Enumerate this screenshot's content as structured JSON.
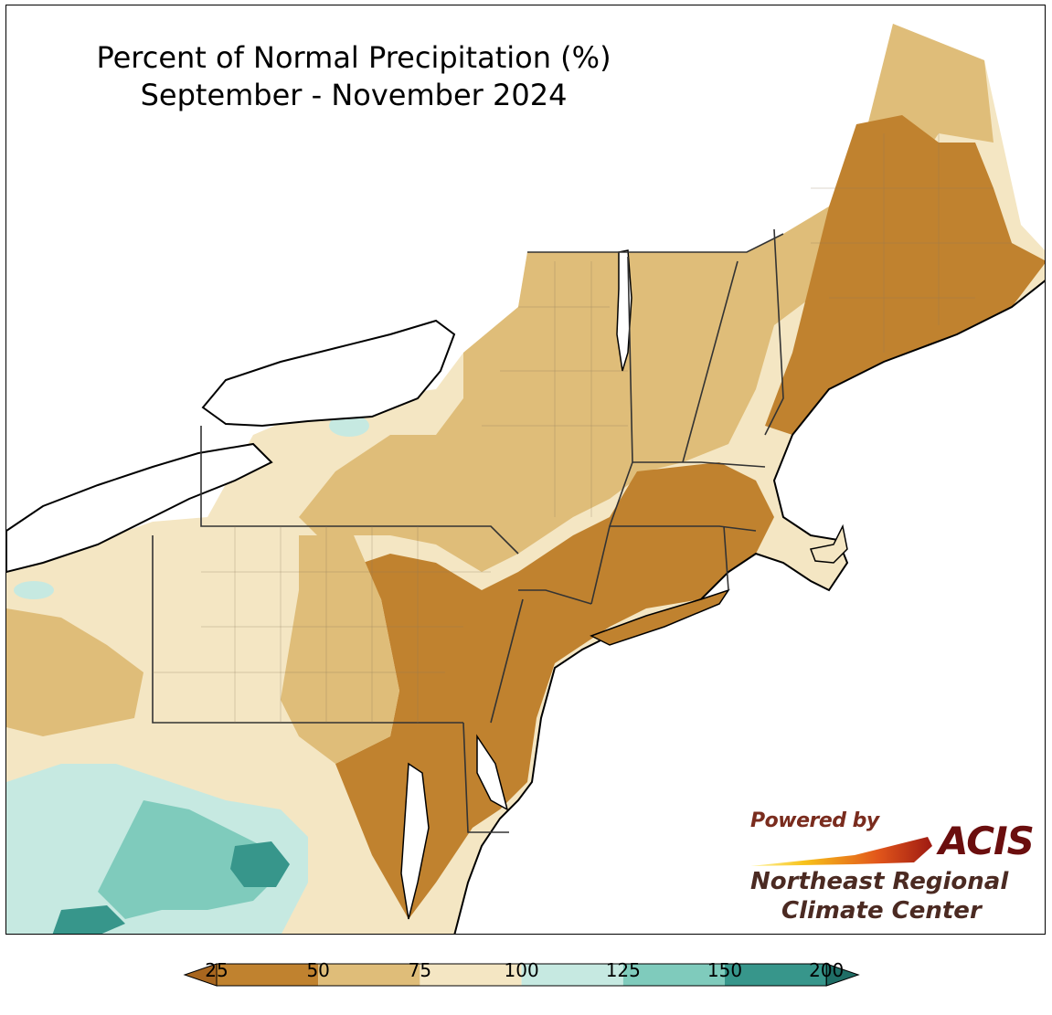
{
  "title": {
    "line1": "Percent of Normal Precipitation (%)",
    "line2": "September - November 2024"
  },
  "logo": {
    "powered_by": "Powered by",
    "brand": "ACIS",
    "org_line1": "Northeast Regional",
    "org_line2": "Climate Center"
  },
  "legend": {
    "ticks": [
      "25",
      "50",
      "75",
      "100",
      "125",
      "150",
      "200"
    ],
    "bins": [
      {
        "range": [
          0,
          25
        ],
        "color": "#a8661f"
      },
      {
        "range": [
          25,
          50
        ],
        "color": "#c0822f"
      },
      {
        "range": [
          50,
          75
        ],
        "color": "#dfbd79"
      },
      {
        "range": [
          75,
          100
        ],
        "color": "#f4e6c3"
      },
      {
        "range": [
          100,
          125
        ],
        "color": "#c6e9e1"
      },
      {
        "range": [
          125,
          150
        ],
        "color": "#7fcbbc"
      },
      {
        "range": [
          150,
          200
        ],
        "color": "#37968b"
      },
      {
        "range": [
          200,
          300
        ],
        "color": "#1f6e66"
      }
    ]
  },
  "colors": {
    "lake": "#ffffff",
    "boundary": "#000000"
  }
}
